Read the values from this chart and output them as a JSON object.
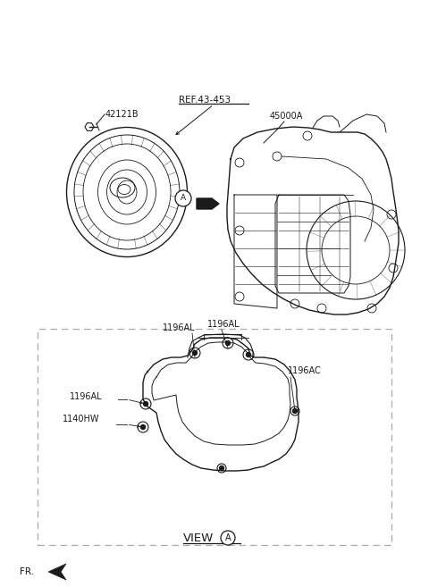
{
  "bg_color": "#ffffff",
  "fig_width": 4.8,
  "fig_height": 6.57,
  "dpi": 100,
  "labels": {
    "ref": "REF.43-453",
    "part_bolt": "42121B",
    "part_trans": "45000A",
    "part_1196al_1": "1196AL",
    "part_1196al_2": "1196AL",
    "part_1196al_3": "1196AL",
    "part_1196ac": "1196AC",
    "part_1140hw": "1140HW",
    "view_label": "VIEW",
    "view_letter": "A",
    "fr_label": "FR."
  },
  "lc": "#1a1a1a",
  "dashed_box_color": "#aaaaaa",
  "font_size": 7.0,
  "font_size_view": 9.0
}
